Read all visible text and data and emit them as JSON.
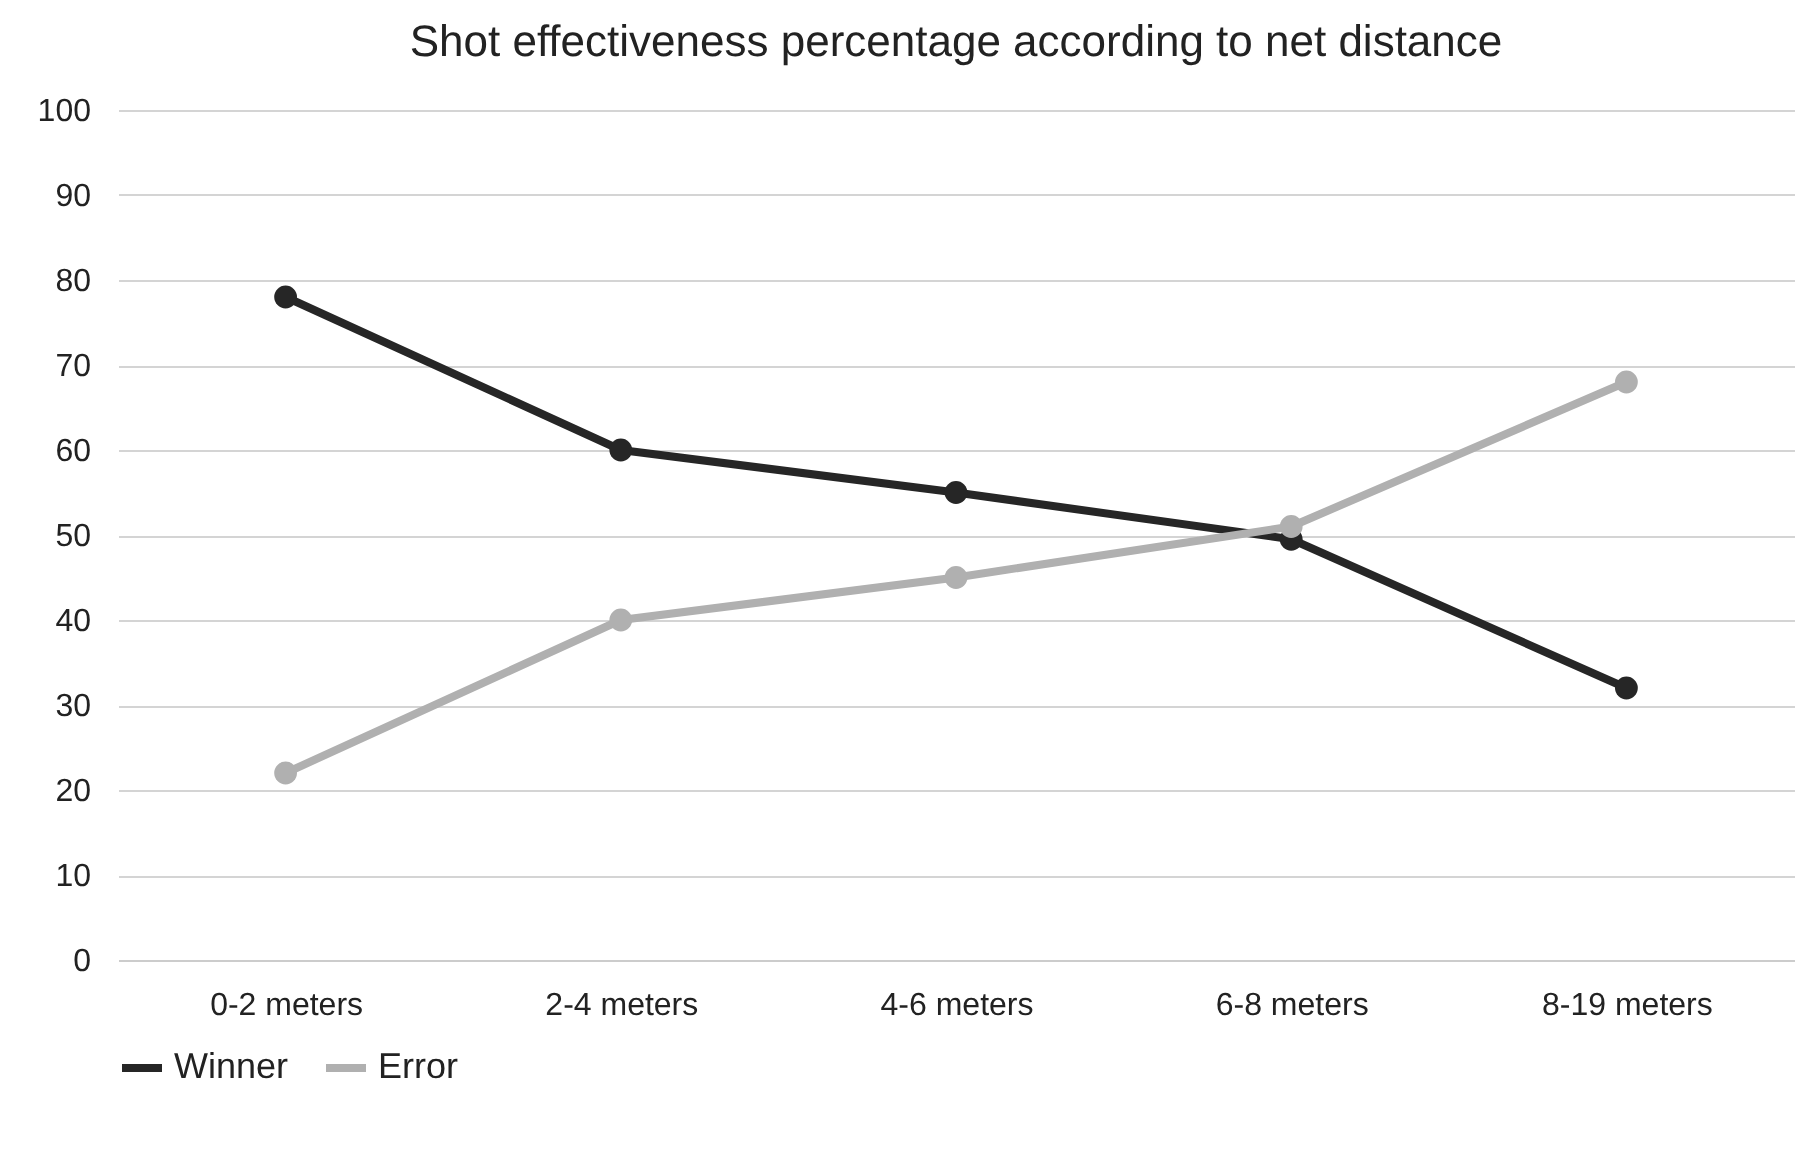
{
  "chart_data": {
    "type": "line",
    "title": "Shot effectiveness percentage according to net distance",
    "categories": [
      "0-2 meters",
      "2-4 meters",
      "4-6 meters",
      "6-8 meters",
      "8-19 meters"
    ],
    "series": [
      {
        "name": "Winner",
        "color": "#262626",
        "values": [
          78,
          60,
          55,
          49.5,
          32
        ]
      },
      {
        "name": "Error",
        "color": "#b0b0b0",
        "values": [
          22,
          40,
          45,
          51,
          68
        ]
      }
    ],
    "ylim": [
      0,
      100
    ],
    "yticks": [
      0,
      10,
      20,
      30,
      40,
      50,
      60,
      70,
      80,
      90,
      100
    ],
    "grid": "y",
    "legend": "bottom",
    "marker": "circle",
    "line_style": "solid"
  }
}
